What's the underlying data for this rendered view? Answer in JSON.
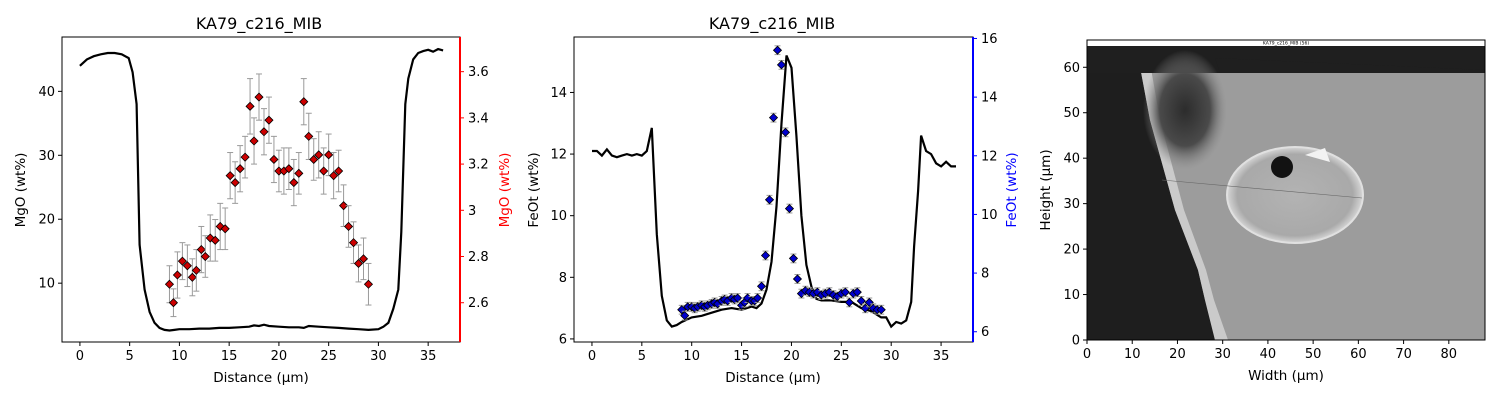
{
  "colors": {
    "profile_line": "#000000",
    "mgo_points": "#cc0000",
    "mgo_axis": "#ff0000",
    "feot_points": "#0000cc",
    "feot_axis": "#0000ff",
    "errorbar": "#9a9a9a"
  },
  "chart_data": [
    {
      "type": "line+scatter",
      "title": "KA79_c216_MIB",
      "xlabel": "Distance (µm)",
      "ylabel_left": "MgO (wt%)",
      "ylabel_right": "MgO (wt%)",
      "xlim": [
        -1.8,
        38.2
      ],
      "ylim_left": [
        0.8,
        48.5
      ],
      "ylim_right": [
        2.43,
        3.75
      ],
      "xticks": [
        0,
        5,
        10,
        15,
        20,
        25,
        30,
        35
      ],
      "yticks_left": [
        10,
        20,
        30,
        40
      ],
      "yticks_right": [
        2.6,
        2.8,
        3.0,
        3.2,
        3.4,
        3.6
      ],
      "series": [
        {
          "axis": "left",
          "style": "line",
          "x": [
            0,
            0.7,
            1.4,
            2.1,
            2.8,
            3.5,
            4.2,
            4.9,
            5.3,
            5.7,
            6.0,
            6.5,
            7.0,
            7.5,
            8.0,
            8.5,
            9.0,
            9.5,
            10.0,
            11,
            12,
            13,
            14,
            15,
            16,
            17,
            17.5,
            18,
            18.5,
            19,
            20,
            21,
            22,
            22.5,
            23,
            24,
            25,
            26,
            27,
            28,
            29,
            30,
            30.5,
            31,
            31.5,
            32,
            32.3,
            32.7,
            33.0,
            33.5,
            34,
            34.5,
            35,
            35.5,
            36,
            36.5
          ],
          "y": [
            44,
            45,
            45.5,
            45.8,
            46,
            46,
            45.8,
            45.2,
            43,
            38,
            16,
            9,
            5.5,
            3.8,
            3.0,
            2.7,
            2.6,
            2.7,
            2.8,
            2.8,
            2.9,
            2.9,
            3.0,
            3.0,
            3.1,
            3.2,
            3.4,
            3.3,
            3.5,
            3.3,
            3.2,
            3.1,
            3.1,
            3.0,
            3.3,
            3.2,
            3.1,
            3.0,
            2.9,
            2.8,
            2.7,
            2.8,
            3.2,
            3.8,
            6,
            9,
            18,
            38,
            42,
            45,
            46,
            46.3,
            46.5,
            46.2,
            46.6,
            46.4
          ]
        },
        {
          "axis": "right",
          "style": "scatter-errorbar",
          "x": [
            9.0,
            9.4,
            9.8,
            10.3,
            10.8,
            11.3,
            11.7,
            12.2,
            12.6,
            13.1,
            13.6,
            14.1,
            14.6,
            15.1,
            15.6,
            16.1,
            16.6,
            17.1,
            17.5,
            18.0,
            18.5,
            19.0,
            19.5,
            20.0,
            20.5,
            21.0,
            21.5,
            22.0,
            22.5,
            23.0,
            23.5,
            24.0,
            24.5,
            25.0,
            25.5,
            26.0,
            26.5,
            27.0,
            27.5,
            28.0,
            28.5,
            29.0
          ],
          "y": [
            2.68,
            2.6,
            2.72,
            2.78,
            2.76,
            2.71,
            2.74,
            2.83,
            2.8,
            2.88,
            2.87,
            2.93,
            2.92,
            3.15,
            3.12,
            3.18,
            3.23,
            3.45,
            3.3,
            3.49,
            3.34,
            3.39,
            3.22,
            3.17,
            3.17,
            3.18,
            3.12,
            3.16,
            3.47,
            3.32,
            3.22,
            3.24,
            3.17,
            3.24,
            3.15,
            3.17,
            3.02,
            2.93,
            2.86,
            2.77,
            2.79,
            2.68
          ],
          "err": [
            0.08,
            0.06,
            0.1,
            0.08,
            0.09,
            0.08,
            0.09,
            0.1,
            0.09,
            0.1,
            0.09,
            0.1,
            0.09,
            0.1,
            0.09,
            0.1,
            0.09,
            0.12,
            0.1,
            0.1,
            0.1,
            0.1,
            0.1,
            0.09,
            0.1,
            0.09,
            0.1,
            0.09,
            0.1,
            0.1,
            0.09,
            0.1,
            0.1,
            0.09,
            0.1,
            0.09,
            0.09,
            0.09,
            0.09,
            0.08,
            0.09,
            0.09
          ]
        }
      ]
    },
    {
      "type": "line+scatter",
      "title": "KA79_c216_MIB",
      "xlabel": "Distance (µm)",
      "ylabel_left": "FeOt (wt%)",
      "ylabel_right": "FeOt (wt%)",
      "xlim": [
        -1.8,
        38.2
      ],
      "ylim_left": [
        5.9,
        15.8
      ],
      "ylim_right": [
        5.65,
        16.05
      ],
      "xticks": [
        0,
        5,
        10,
        15,
        20,
        25,
        30,
        35
      ],
      "yticks_left": [
        6,
        8,
        10,
        12,
        14
      ],
      "yticks_right": [
        6,
        8,
        10,
        12,
        14,
        16
      ],
      "series": [
        {
          "axis": "left",
          "style": "line",
          "x": [
            0,
            0.5,
            1.0,
            1.5,
            2.0,
            2.5,
            3.0,
            3.5,
            4.0,
            4.5,
            5.0,
            5.5,
            6.0,
            6.5,
            7.0,
            7.5,
            8.0,
            8.5,
            9,
            10,
            11,
            12,
            13,
            14,
            15,
            16,
            16.5,
            17,
            17.5,
            18,
            18.5,
            19,
            19.5,
            20,
            20.5,
            21,
            21.5,
            22,
            22.5,
            23,
            24,
            25,
            26,
            27,
            28,
            29,
            29.5,
            30,
            30.5,
            31,
            31.5,
            32,
            32.3,
            32.7,
            33.0,
            33.5,
            34,
            34.5,
            35,
            35.5,
            36,
            36.5
          ],
          "y": [
            12.1,
            12.1,
            11.95,
            12.15,
            11.95,
            11.9,
            11.95,
            12.0,
            11.95,
            12.0,
            11.95,
            12.1,
            12.85,
            9.4,
            7.4,
            6.6,
            6.4,
            6.45,
            6.55,
            6.7,
            6.75,
            6.85,
            6.95,
            7.0,
            6.95,
            7.05,
            7.0,
            7.15,
            7.6,
            8.5,
            10.3,
            13.0,
            15.2,
            14.8,
            12.6,
            10.0,
            8.4,
            7.7,
            7.3,
            7.25,
            7.25,
            7.2,
            7.2,
            7.0,
            6.9,
            6.7,
            6.7,
            6.4,
            6.55,
            6.5,
            6.6,
            7.2,
            9,
            10.8,
            12.6,
            12.1,
            12.0,
            11.7,
            11.6,
            11.75,
            11.6,
            11.6
          ],
          "comment": ""
        },
        {
          "axis": "right",
          "style": "scatter-errorbar",
          "x": [
            9.0,
            9.3,
            9.6,
            10.0,
            10.3,
            10.6,
            11.0,
            11.3,
            11.6,
            12.0,
            12.3,
            12.6,
            13.0,
            13.3,
            13.6,
            14.0,
            14.3,
            14.6,
            15.0,
            15.3,
            15.6,
            16.0,
            16.3,
            16.6,
            17.0,
            17.4,
            17.8,
            18.2,
            18.6,
            19.0,
            19.4,
            19.8,
            20.2,
            20.6,
            21.0,
            21.4,
            21.8,
            22.2,
            22.6,
            23.0,
            23.4,
            23.8,
            24.2,
            24.6,
            25.0,
            25.4,
            25.8,
            26.2,
            26.6,
            27.0,
            27.4,
            27.8,
            28.2,
            28.6,
            29.0
          ],
          "y": [
            6.75,
            6.55,
            6.85,
            6.85,
            6.8,
            6.85,
            6.9,
            6.85,
            6.9,
            6.95,
            7.0,
            6.95,
            7.05,
            7.1,
            7.05,
            7.15,
            7.1,
            7.15,
            6.9,
            7.0,
            7.15,
            7.05,
            7.05,
            7.15,
            7.55,
            8.6,
            10.5,
            13.3,
            15.6,
            15.1,
            12.8,
            10.2,
            8.5,
            7.8,
            7.3,
            7.4,
            7.35,
            7.3,
            7.35,
            7.25,
            7.3,
            7.35,
            7.25,
            7.2,
            7.3,
            7.35,
            7.0,
            7.3,
            7.35,
            7.05,
            6.8,
            7.0,
            6.8,
            6.75,
            6.75
          ],
          "err": [
            0.15,
            0.15,
            0.15,
            0.15,
            0.15,
            0.15,
            0.15,
            0.15,
            0.15,
            0.15,
            0.15,
            0.15,
            0.15,
            0.15,
            0.15,
            0.15,
            0.15,
            0.15,
            0.15,
            0.15,
            0.15,
            0.15,
            0.15,
            0.15,
            0.15,
            0.15,
            0.15,
            0.15,
            0.15,
            0.15,
            0.15,
            0.15,
            0.15,
            0.15,
            0.15,
            0.15,
            0.15,
            0.15,
            0.15,
            0.15,
            0.15,
            0.15,
            0.15,
            0.15,
            0.15,
            0.15,
            0.15,
            0.15,
            0.15,
            0.15,
            0.15,
            0.15,
            0.15,
            0.15,
            0.15
          ]
        }
      ]
    },
    {
      "type": "image",
      "xlabel": "Width (µm)",
      "ylabel": "Height (µm)",
      "xlim": [
        0,
        88
      ],
      "ylim": [
        0,
        66
      ],
      "xticks": [
        0,
        10,
        20,
        30,
        40,
        50,
        60,
        70,
        80
      ],
      "yticks": [
        0,
        10,
        20,
        30,
        40,
        50,
        60
      ],
      "image_caption": "KA79_c216_MIB (56)"
    }
  ]
}
